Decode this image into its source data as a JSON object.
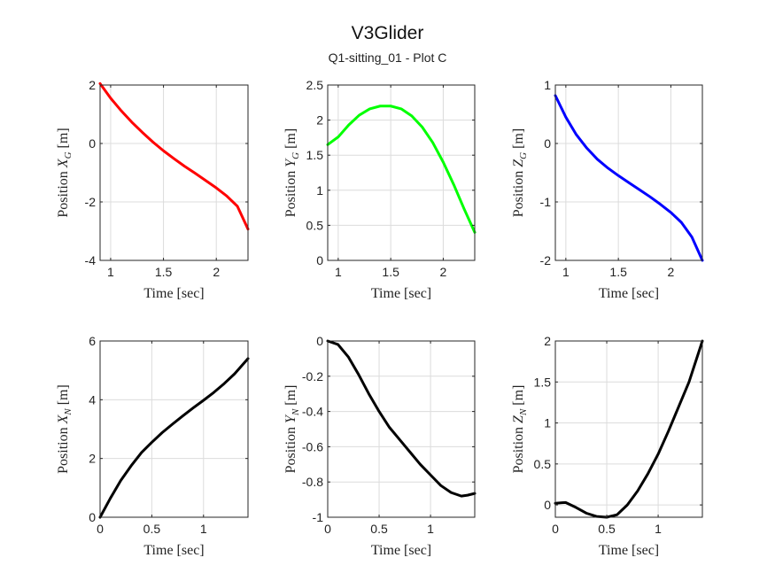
{
  "figure": {
    "title": "V3Glider",
    "subtitle": "Q1-sitting_01 - Plot C"
  },
  "chart_data": [
    {
      "type": "line",
      "ylabel_prefix": "Position ",
      "ylabel_var": "X",
      "ylabel_sub": "G",
      "ylabel_unit": " [m]",
      "xlabel": "Time [sec]",
      "color": "#ff0000",
      "xlim": [
        0.9,
        2.3
      ],
      "ylim": [
        -4,
        2
      ],
      "xticks": [
        1,
        1.5,
        2
      ],
      "xtick_labels": [
        "1",
        "1.5",
        "2"
      ],
      "yticks": [
        -4,
        -2,
        0,
        2
      ],
      "ytick_labels": [
        "-4",
        "-2",
        "0",
        "2"
      ],
      "x": [
        0.9,
        1.0,
        1.1,
        1.2,
        1.3,
        1.4,
        1.5,
        1.6,
        1.7,
        1.8,
        1.9,
        2.0,
        2.1,
        2.2,
        2.3
      ],
      "y": [
        2.05,
        1.55,
        1.12,
        0.73,
        0.38,
        0.05,
        -0.25,
        -0.52,
        -0.78,
        -1.02,
        -1.27,
        -1.52,
        -1.8,
        -2.15,
        -2.93
      ]
    },
    {
      "type": "line",
      "ylabel_prefix": "Position ",
      "ylabel_var": "Y",
      "ylabel_sub": "G",
      "ylabel_unit": " [m]",
      "xlabel": "Time [sec]",
      "color": "#00ff00",
      "xlim": [
        0.9,
        2.3
      ],
      "ylim": [
        0,
        2.5
      ],
      "xticks": [
        1,
        1.5,
        2
      ],
      "xtick_labels": [
        "1",
        "1.5",
        "2"
      ],
      "yticks": [
        0,
        0.5,
        1,
        1.5,
        2,
        2.5
      ],
      "ytick_labels": [
        "0",
        "0.5",
        "1",
        "1.5",
        "2",
        "2.5"
      ],
      "x": [
        0.9,
        1.0,
        1.1,
        1.2,
        1.3,
        1.4,
        1.5,
        1.6,
        1.7,
        1.8,
        1.9,
        2.0,
        2.1,
        2.2,
        2.3
      ],
      "y": [
        1.65,
        1.76,
        1.93,
        2.07,
        2.16,
        2.2,
        2.2,
        2.16,
        2.06,
        1.9,
        1.68,
        1.4,
        1.08,
        0.73,
        0.4
      ]
    },
    {
      "type": "line",
      "ylabel_prefix": "Position ",
      "ylabel_var": "Z",
      "ylabel_sub": "G",
      "ylabel_unit": " [m]",
      "xlabel": "Time [sec]",
      "color": "#0000ff",
      "xlim": [
        0.9,
        2.3
      ],
      "ylim": [
        -2,
        1
      ],
      "xticks": [
        1,
        1.5,
        2
      ],
      "xtick_labels": [
        "1",
        "1.5",
        "2"
      ],
      "yticks": [
        -2,
        -1,
        0,
        1
      ],
      "ytick_labels": [
        "-2",
        "-1",
        "0",
        "1"
      ],
      "x": [
        0.9,
        1.0,
        1.1,
        1.2,
        1.3,
        1.4,
        1.5,
        1.6,
        1.7,
        1.8,
        1.9,
        2.0,
        2.1,
        2.2,
        2.3
      ],
      "y": [
        0.82,
        0.45,
        0.15,
        -0.08,
        -0.27,
        -0.42,
        -0.55,
        -0.67,
        -0.79,
        -0.91,
        -1.04,
        -1.18,
        -1.35,
        -1.6,
        -2.0
      ]
    },
    {
      "type": "line",
      "ylabel_prefix": "Position ",
      "ylabel_var": "X",
      "ylabel_sub": "N",
      "ylabel_unit": " [m]",
      "xlabel": "Time [sec]",
      "color": "#000000",
      "xlim": [
        0,
        1.43
      ],
      "ylim": [
        0,
        6
      ],
      "xticks": [
        0,
        0.5,
        1
      ],
      "xtick_labels": [
        "0",
        "0.5",
        "1"
      ],
      "yticks": [
        0,
        2,
        4,
        6
      ],
      "ytick_labels": [
        "0",
        "2",
        "4",
        "6"
      ],
      "x": [
        0,
        0.1,
        0.2,
        0.3,
        0.4,
        0.5,
        0.6,
        0.7,
        0.8,
        0.9,
        1.0,
        1.1,
        1.2,
        1.3,
        1.43
      ],
      "y": [
        0,
        0.65,
        1.25,
        1.75,
        2.2,
        2.55,
        2.88,
        3.17,
        3.45,
        3.72,
        3.98,
        4.25,
        4.55,
        4.88,
        5.4
      ]
    },
    {
      "type": "line",
      "ylabel_prefix": "Position ",
      "ylabel_var": "Y",
      "ylabel_sub": "N",
      "ylabel_unit": " [m]",
      "xlabel": "Time [sec]",
      "color": "#000000",
      "xlim": [
        0,
        1.43
      ],
      "ylim": [
        -1,
        0
      ],
      "xticks": [
        0,
        0.5,
        1
      ],
      "xtick_labels": [
        "0",
        "0.5",
        "1"
      ],
      "yticks": [
        -1,
        -0.8,
        -0.6,
        -0.4,
        -0.2,
        0
      ],
      "ytick_labels": [
        "-1",
        "-0.8",
        "-0.6",
        "-0.4",
        "-0.2",
        "0"
      ],
      "x": [
        0,
        0.1,
        0.2,
        0.3,
        0.4,
        0.5,
        0.6,
        0.7,
        0.8,
        0.9,
        1.0,
        1.1,
        1.2,
        1.3,
        1.36,
        1.43
      ],
      "y": [
        0,
        -0.02,
        -0.09,
        -0.19,
        -0.3,
        -0.4,
        -0.49,
        -0.56,
        -0.63,
        -0.7,
        -0.76,
        -0.82,
        -0.86,
        -0.88,
        -0.875,
        -0.865
      ]
    },
    {
      "type": "line",
      "ylabel_prefix": "Position ",
      "ylabel_var": "Z",
      "ylabel_sub": "N",
      "ylabel_unit": " [m]",
      "xlabel": "Time [sec]",
      "color": "#000000",
      "xlim": [
        0,
        1.43
      ],
      "ylim": [
        -0.15,
        2
      ],
      "xticks": [
        0,
        0.5,
        1
      ],
      "xtick_labels": [
        "0",
        "0.5",
        "1"
      ],
      "yticks": [
        0,
        0.5,
        1,
        1.5,
        2
      ],
      "ytick_labels": [
        "0",
        "0.5",
        "1",
        "1.5",
        "2"
      ],
      "x": [
        0,
        0.1,
        0.2,
        0.3,
        0.4,
        0.5,
        0.6,
        0.7,
        0.8,
        0.9,
        1.0,
        1.1,
        1.2,
        1.3,
        1.43
      ],
      "y": [
        0.02,
        0.03,
        -0.03,
        -0.1,
        -0.14,
        -0.15,
        -0.12,
        0.0,
        0.17,
        0.38,
        0.62,
        0.9,
        1.2,
        1.5,
        2.0
      ]
    }
  ]
}
